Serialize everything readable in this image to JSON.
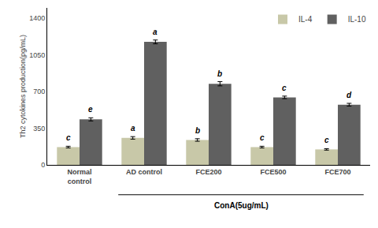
{
  "chart_data": {
    "type": "bar",
    "categories": [
      "Normal\ncontrol",
      "AD control",
      "FCE200",
      "FCE500",
      "FCE700"
    ],
    "series": [
      {
        "name": "IL-4",
        "color": "#c8c8a8",
        "values": [
          170,
          258,
          238,
          170,
          148
        ],
        "errors": [
          8,
          12,
          12,
          8,
          7
        ],
        "letters": [
          "c",
          "a",
          "b",
          "c",
          "c"
        ]
      },
      {
        "name": "IL-10",
        "color": "#606060",
        "values": [
          435,
          1175,
          775,
          645,
          575
        ],
        "errors": [
          15,
          18,
          20,
          12,
          13
        ],
        "letters": [
          "e",
          "a",
          "b",
          "c",
          "d"
        ]
      }
    ],
    "ylabel": "Th2 cytokines production(pg/mL)",
    "ylim": [
      0,
      1500
    ],
    "yticks": [
      0,
      350,
      700,
      1050,
      1400
    ],
    "grid": false,
    "legend": "upper right",
    "annotations": [
      {
        "text": "ConA(5ug/mL)",
        "from": "AD control",
        "to": "FCE700"
      }
    ]
  }
}
